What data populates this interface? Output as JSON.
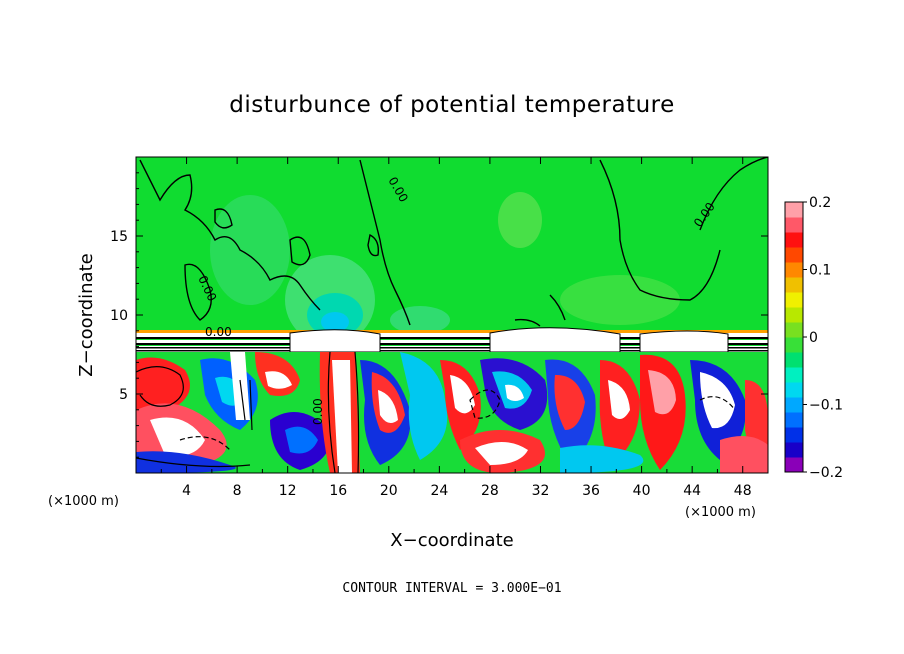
{
  "chart_data": {
    "type": "heatmap",
    "title": "disturbunce of potential temperature",
    "xlabel": "X−coordinate",
    "ylabel": "Z−coordinate",
    "x_unit": "(×1000 m)",
    "y_unit": "(×1000 m)",
    "xlim": [
      0,
      50
    ],
    "ylim": [
      0,
      20
    ],
    "x_ticks": [
      4,
      8,
      12,
      16,
      20,
      24,
      28,
      32,
      36,
      40,
      44,
      48
    ],
    "x_tick_labels": [
      "4",
      "8",
      "12",
      "16",
      "20",
      "24",
      "28",
      "32",
      "36",
      "40",
      "44",
      "48"
    ],
    "y_ticks": [
      5,
      10,
      15
    ],
    "y_tick_labels": [
      "5",
      "10",
      "15"
    ],
    "colorbar": {
      "min": -0.2,
      "max": 0.2,
      "ticks": [
        -0.2,
        -0.1,
        0,
        0.1,
        0.2
      ],
      "tick_labels": [
        "−0.2",
        "−0.1",
        "0",
        "0.1",
        "0.2"
      ],
      "colors": [
        "#8a00b8",
        "#1800c8",
        "#0030e8",
        "#0070ff",
        "#00a8ff",
        "#00d8f0",
        "#00f0c0",
        "#00e070",
        "#38e038",
        "#78e020",
        "#b8e800",
        "#f0f000",
        "#f0c000",
        "#ff8800",
        "#ff4800",
        "#ff1010",
        "#ff5868",
        "#ffa0a8"
      ]
    },
    "contour_labels": [
      "0.00",
      "0.00",
      "0.00",
      "0.00",
      "0.00"
    ],
    "contour_interval": "CONTOUR INTERVAL = 3.000E−01"
  }
}
